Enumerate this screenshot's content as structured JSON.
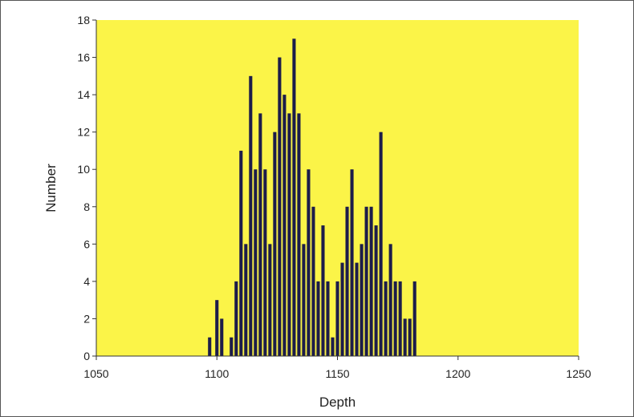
{
  "chart_data": {
    "type": "bar",
    "xlabel": "Depth",
    "ylabel": "Number",
    "xlim": [
      1050,
      1250
    ],
    "ylim": [
      0,
      18
    ],
    "x_ticks": [
      "1050",
      "1100",
      "1150",
      "1200",
      "1250"
    ],
    "y_ticks": [
      "0",
      "2",
      "4",
      "6",
      "8",
      "10",
      "12",
      "14",
      "16",
      "18"
    ],
    "grid": false,
    "legend": "none",
    "plot_background": "#fbf448",
    "bar_color": "#1c1c4a",
    "x": [
      1097,
      1100,
      1102,
      1106,
      1108,
      1110,
      1112,
      1114,
      1116,
      1118,
      1120,
      1122,
      1124,
      1126,
      1128,
      1130,
      1132,
      1134,
      1136,
      1138,
      1140,
      1142,
      1144,
      1146,
      1148,
      1150,
      1152,
      1154,
      1156,
      1158,
      1160,
      1162,
      1164,
      1166,
      1168,
      1170,
      1172,
      1174,
      1176,
      1178,
      1180,
      1182
    ],
    "values": [
      1,
      3,
      2,
      1,
      4,
      11,
      6,
      15,
      10,
      13,
      10,
      6,
      12,
      16,
      14,
      13,
      17,
      13,
      6,
      10,
      8,
      4,
      7,
      4,
      1,
      4,
      5,
      8,
      10,
      5,
      6,
      8,
      8,
      7,
      12,
      4,
      6,
      4,
      4,
      2,
      2,
      4
    ]
  }
}
